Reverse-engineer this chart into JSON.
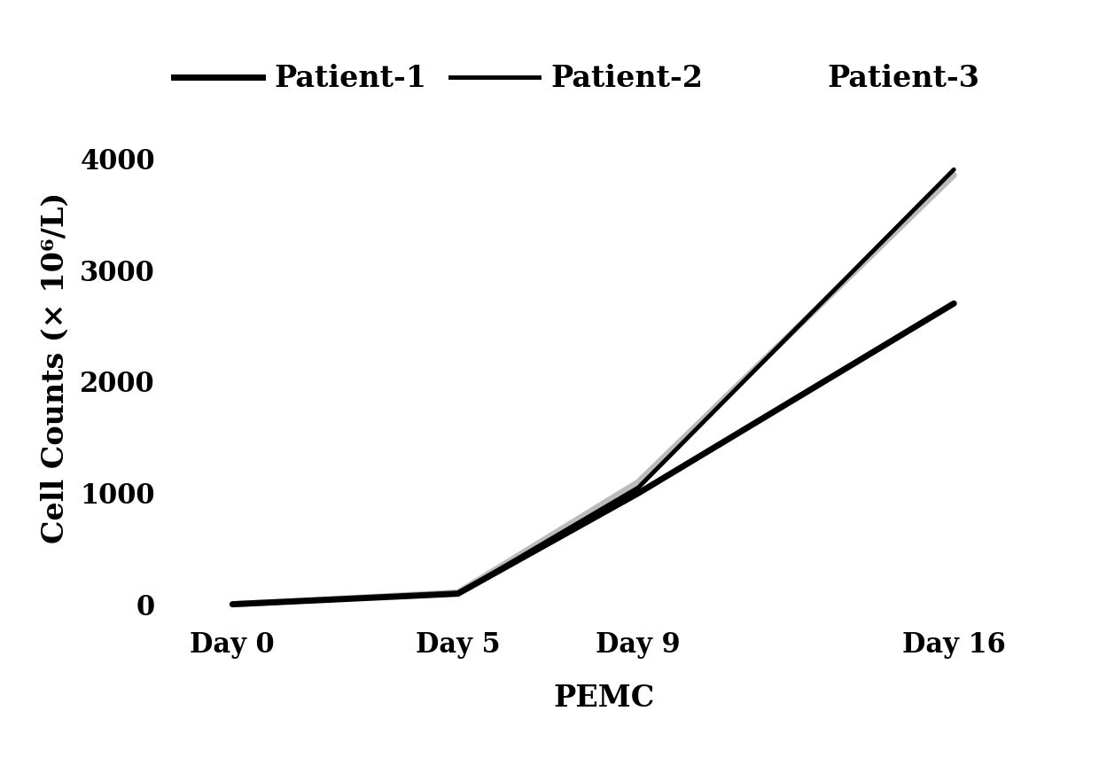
{
  "x_positions": [
    0,
    5,
    9,
    16
  ],
  "x_labels": [
    "Day 0",
    "Day 5",
    "Day 9",
    "Day 16"
  ],
  "patient1": [
    5,
    100,
    1000,
    2700
  ],
  "patient2": [
    5,
    100,
    1050,
    3900
  ],
  "patient3": [
    5,
    110,
    1100,
    3850
  ],
  "patient1_color": "#000000",
  "patient2_color": "#000000",
  "patient3_color": "#bbbbbb",
  "patient1_lw": 5.0,
  "patient2_lw": 3.5,
  "patient3_lw": 5.0,
  "ylabel": "Cell Counts (× 10⁶/L)",
  "xlabel": "PEMC",
  "yticks": [
    0,
    1000,
    2000,
    3000,
    4000
  ],
  "ylim": [
    -150,
    4400
  ],
  "xlim": [
    -1.5,
    18
  ],
  "legend_labels": [
    "Patient-1",
    "Patient-2",
    "Patient-3"
  ],
  "background_color": "#ffffff",
  "label_fontsize": 24,
  "tick_fontsize": 22,
  "legend_fontsize": 24
}
